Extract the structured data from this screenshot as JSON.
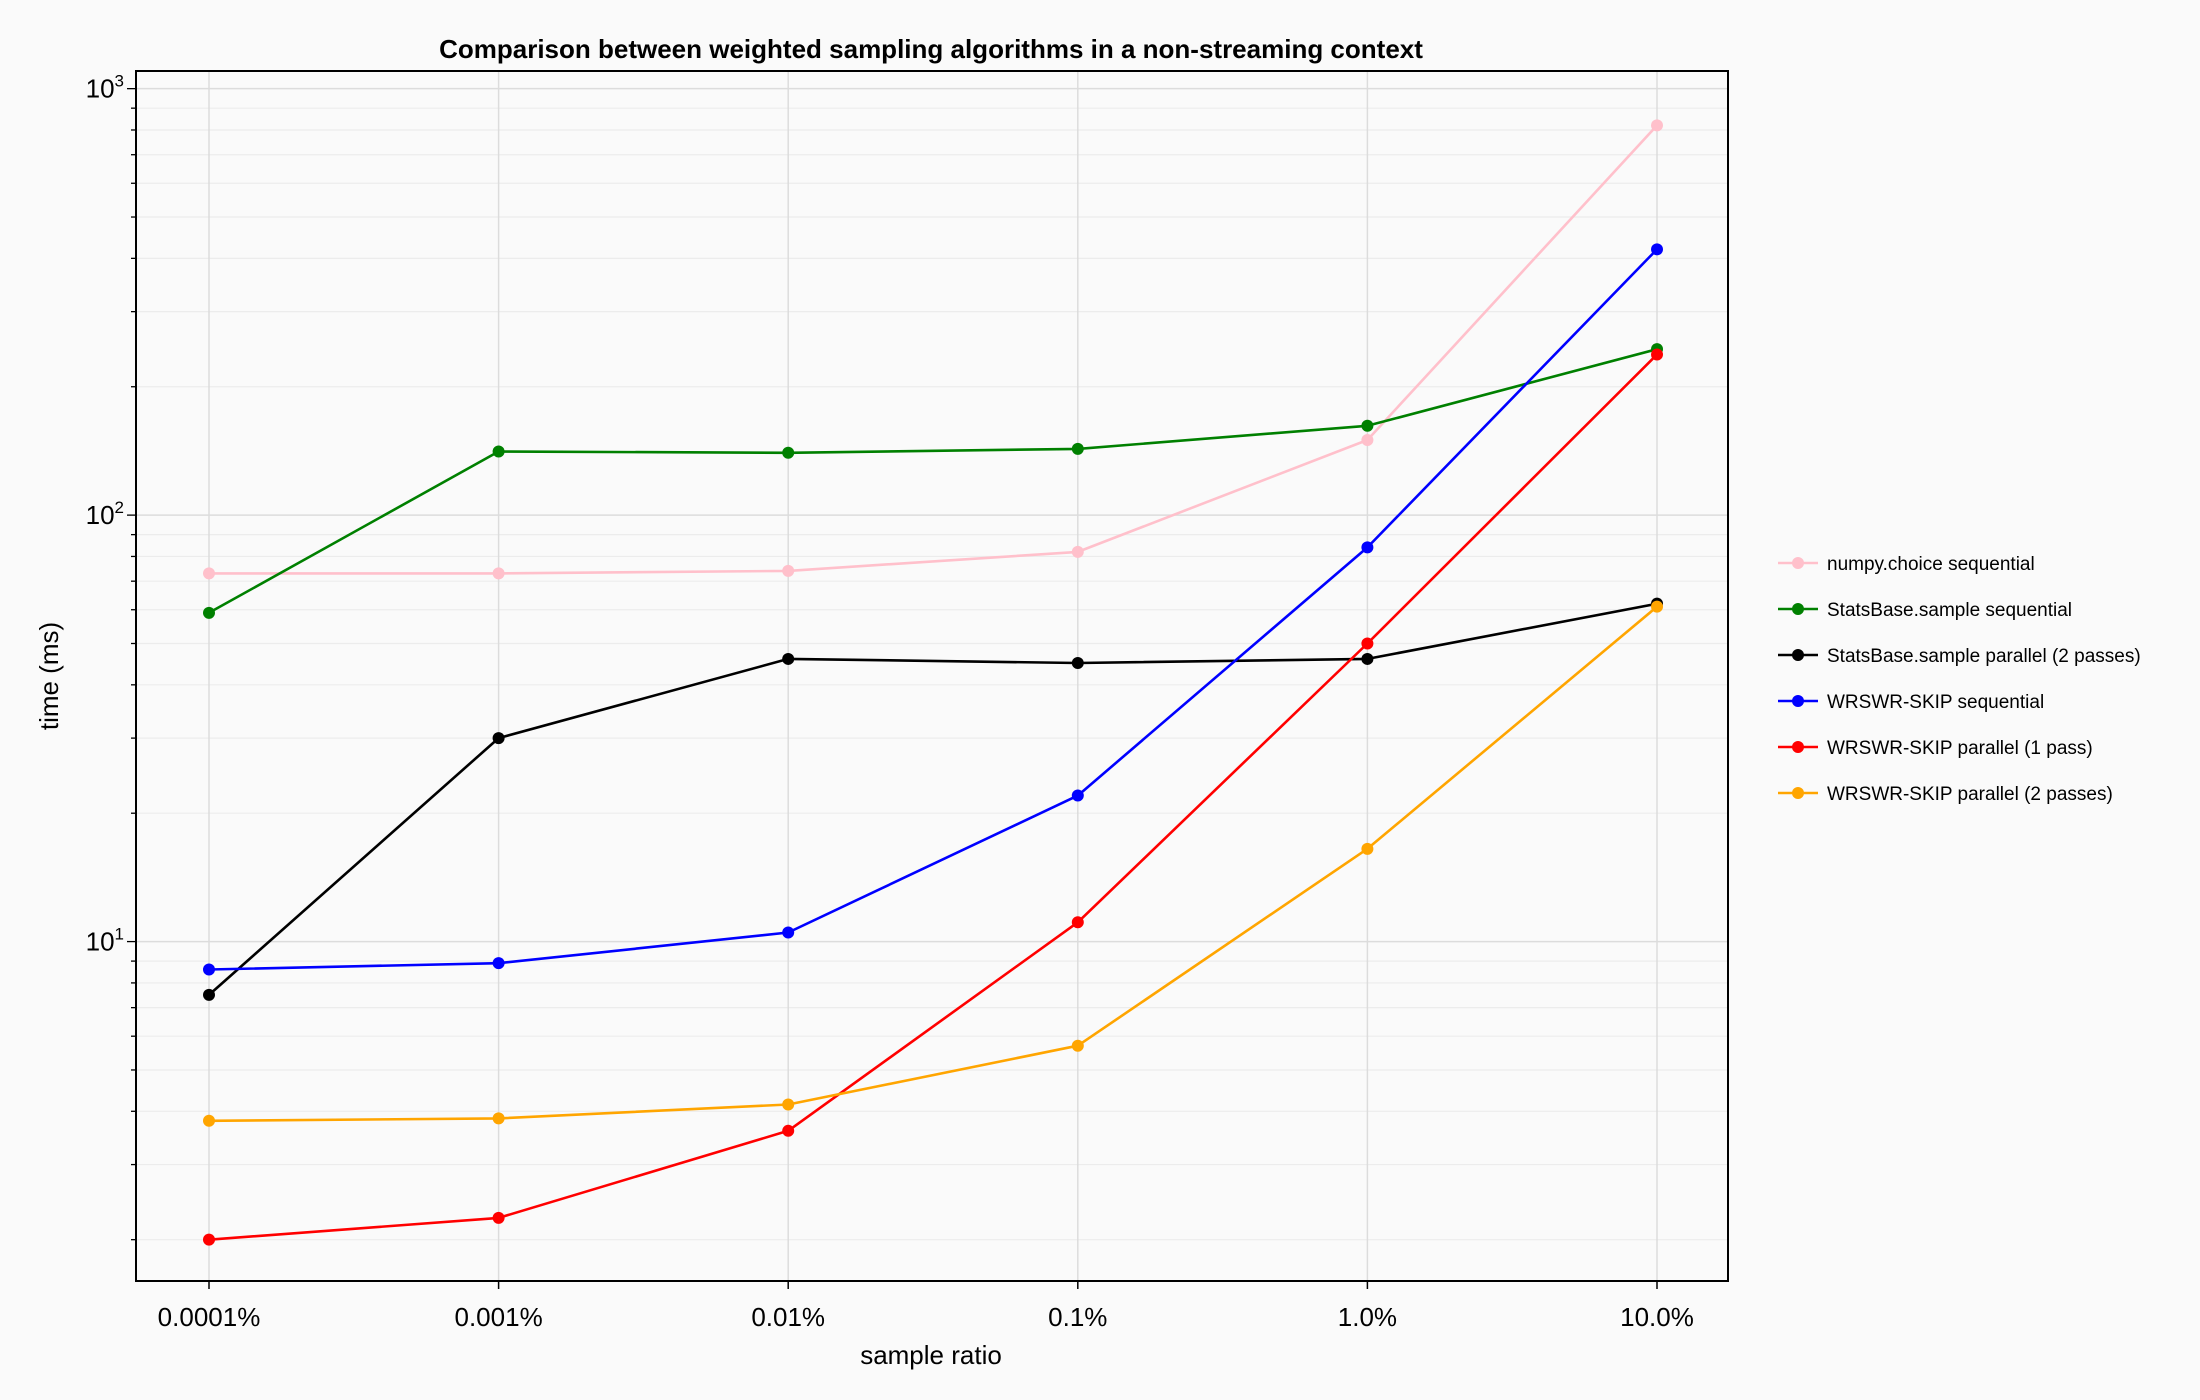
{
  "chart_data": {
    "type": "line",
    "title": "Comparison between weighted sampling algorithms in a non-streaming context",
    "xlabel": "sample ratio",
    "ylabel": "time (ms)",
    "categories": [
      "0.0001%",
      "0.001%",
      "0.01%",
      "0.1%",
      "1.0%",
      "10.0%"
    ],
    "yscale": "log",
    "ylim": [
      1.6,
      1100
    ],
    "yticks": [
      {
        "value": 10,
        "base": "10",
        "exp": "1"
      },
      {
        "value": 100,
        "base": "10",
        "exp": "2"
      },
      {
        "value": 1000,
        "base": "10",
        "exp": "3"
      }
    ],
    "grid": true,
    "legend_position": "right",
    "series": [
      {
        "name": "numpy.choice sequential",
        "color": "#ffc0cb",
        "values": [
          73,
          73,
          74,
          82,
          150,
          820
        ]
      },
      {
        "name": "StatsBase.sample sequential",
        "color": "#008000",
        "values": [
          59,
          141,
          140,
          143,
          162,
          245
        ]
      },
      {
        "name": "StatsBase.sample parallel (2 passes)",
        "color": "#000000",
        "values": [
          7.5,
          30,
          46,
          45,
          46,
          62
        ]
      },
      {
        "name": "WRSWR-SKIP sequential",
        "color": "#0000ff",
        "values": [
          8.6,
          8.9,
          10.5,
          22,
          84,
          420
        ]
      },
      {
        "name": "WRSWR-SKIP parallel (1 pass)",
        "color": "#ff0000",
        "values": [
          2.0,
          2.25,
          3.6,
          11.1,
          50,
          238
        ]
      },
      {
        "name": "WRSWR-SKIP parallel (2 passes)",
        "color": "#ffa500",
        "values": [
          3.8,
          3.85,
          4.15,
          5.7,
          16.5,
          61
        ]
      }
    ]
  }
}
